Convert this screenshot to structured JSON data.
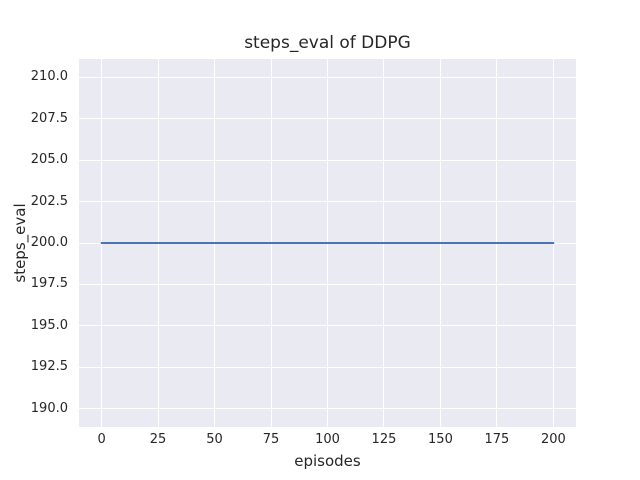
{
  "chart_data": {
    "type": "line",
    "title": "steps_eval of DDPG",
    "xlabel": "episodes",
    "ylabel": "steps_eval",
    "grid": true,
    "legend": "none",
    "xlim": [
      -10,
      210
    ],
    "ylim": [
      188.9,
      211.1
    ],
    "x_ticks": {
      "values": [
        0,
        25,
        50,
        75,
        100,
        125,
        150,
        175,
        200
      ],
      "labels": [
        "0",
        "25",
        "50",
        "75",
        "100",
        "125",
        "150",
        "175",
        "200"
      ]
    },
    "y_ticks": {
      "values": [
        190.0,
        192.5,
        195.0,
        197.5,
        200.0,
        202.5,
        205.0,
        207.5,
        210.0
      ],
      "labels": [
        "190.0",
        "192.5",
        "195.0",
        "197.5",
        "200.0",
        "202.5",
        "205.0",
        "207.5",
        "210.0"
      ]
    },
    "series": [
      {
        "name": "steps_eval",
        "description": "constant value 200 across all episodes",
        "x": [
          0,
          200
        ],
        "y": [
          200,
          200
        ],
        "color": "#4C72B0",
        "linewidth": 2
      }
    ],
    "colors": {
      "figure_background": "#FFFFFF",
      "axes_background": "#EAEAF2",
      "gridline": "#FFFFFF",
      "text": "#262626"
    }
  }
}
